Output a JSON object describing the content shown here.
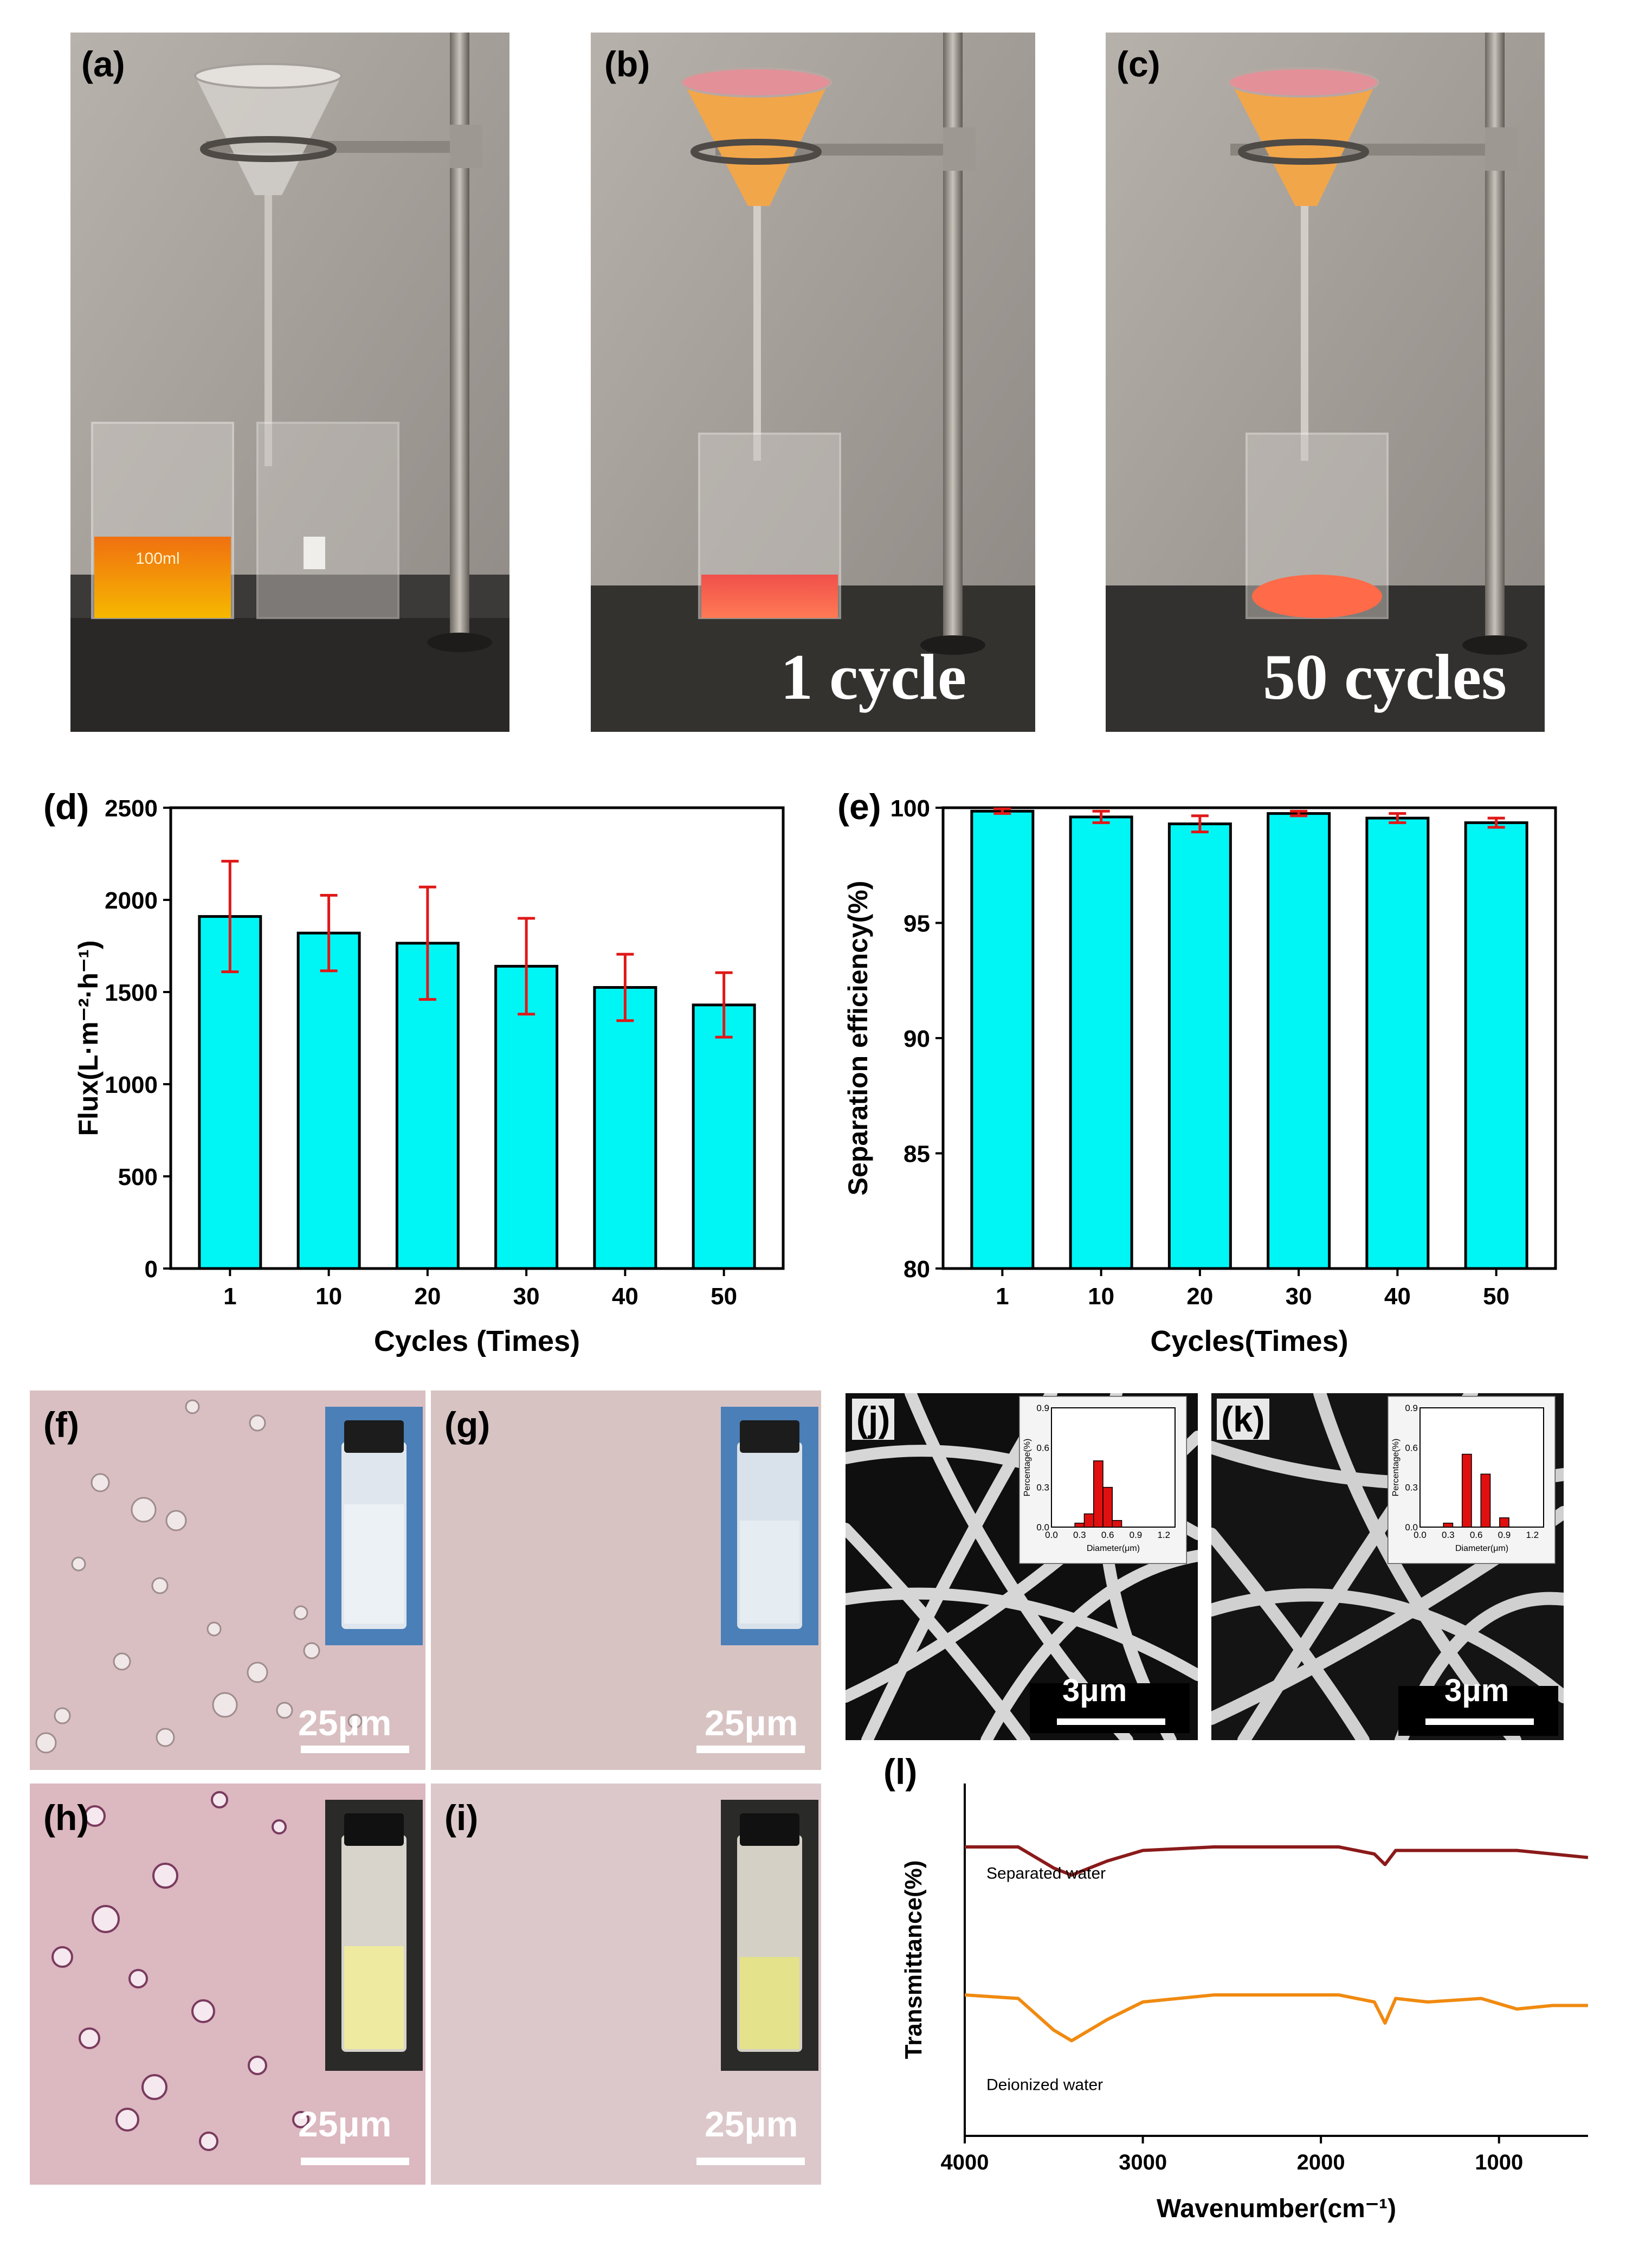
{
  "panels": {
    "a": {
      "label": "(a)"
    },
    "b": {
      "label": "(b)",
      "caption": "1 cycle"
    },
    "c": {
      "label": "(c)",
      "caption": "50 cycles"
    },
    "d": {
      "label": "(d)"
    },
    "e": {
      "label": "(e)"
    },
    "f": {
      "label": "(f)",
      "scale": "25μm"
    },
    "g": {
      "label": "(g)",
      "scale": "25μm"
    },
    "h": {
      "label": "(h)",
      "scale": "25μm"
    },
    "i": {
      "label": "(i)",
      "scale": "25μm"
    },
    "j": {
      "label": "(j)",
      "scale": "3μm"
    },
    "k": {
      "label": "(k)",
      "scale": "3μm"
    },
    "l": {
      "label": "(l)"
    }
  },
  "beaker_text": "100ml",
  "colors": {
    "bar": "#00f5f5",
    "error": "#e01818",
    "separated": "#8b1a1a",
    "deionized": "#f08a10",
    "hist": "#e01010"
  },
  "chart_data": [
    {
      "id": "d",
      "type": "bar",
      "categories": [
        "1",
        "10",
        "20",
        "30",
        "40",
        "50"
      ],
      "values": [
        1910,
        1820,
        1765,
        1640,
        1525,
        1430
      ],
      "errors": [
        300,
        205,
        305,
        260,
        180,
        175
      ],
      "xlabel": "Cycles (Times)",
      "ylabel": "Flux(L·m⁻²·h⁻¹)",
      "ylim": [
        0,
        2500
      ],
      "yticks": [
        "0",
        "500",
        "1000",
        "1500",
        "2000",
        "2500"
      ]
    },
    {
      "id": "e",
      "type": "bar",
      "categories": [
        "1",
        "10",
        "20",
        "30",
        "40",
        "50"
      ],
      "values": [
        99.85,
        99.6,
        99.3,
        99.75,
        99.55,
        99.35
      ],
      "errors": [
        0.1,
        0.25,
        0.35,
        0.1,
        0.2,
        0.2
      ],
      "xlabel": "Cycles(Times)",
      "ylabel": "Separation efficiency(%)",
      "ylim": [
        80,
        100
      ],
      "yticks": [
        "80",
        "85",
        "90",
        "95",
        "100"
      ]
    },
    {
      "id": "j_inset",
      "type": "bar",
      "categories": [
        "0.3",
        "0.4",
        "0.5",
        "0.6",
        "0.7"
      ],
      "values": [
        0.03,
        0.1,
        0.5,
        0.3,
        0.05
      ],
      "xlabel": "Diameter(μm)",
      "ylabel": "Percentage(%)",
      "xticks": [
        "0.0",
        "0.3",
        "0.6",
        "0.9",
        "1.2"
      ],
      "yticks": [
        "0.0",
        "0.3",
        "0.6",
        "0.9"
      ],
      "ylim": [
        0,
        0.9
      ]
    },
    {
      "id": "k_inset",
      "type": "bar",
      "categories": [
        "0.3",
        "0.5",
        "0.7",
        "0.9"
      ],
      "values": [
        0.03,
        0.55,
        0.4,
        0.07
      ],
      "xlabel": "Diameter(μm)",
      "ylabel": "Percentage(%)",
      "xticks": [
        "0.0",
        "0.3",
        "0.6",
        "0.9",
        "1.2"
      ],
      "yticks": [
        "0.0",
        "0.3",
        "0.6",
        "0.9"
      ],
      "ylim": [
        0,
        0.9
      ]
    },
    {
      "id": "l",
      "type": "line",
      "xlabel": "Wavenumber(cm⁻¹)",
      "ylabel": "Transmittance(%)",
      "xlim": [
        4000,
        500
      ],
      "xticks": [
        "4000",
        "3000",
        "2000",
        "1000"
      ],
      "series": [
        {
          "name": "Separated water",
          "x": [
            4000,
            3700,
            3500,
            3400,
            3200,
            3000,
            2600,
            2200,
            1900,
            1700,
            1640,
            1580,
            1400,
            1100,
            900,
            700,
            500
          ],
          "y": [
            0.82,
            0.82,
            0.76,
            0.74,
            0.78,
            0.81,
            0.82,
            0.82,
            0.82,
            0.8,
            0.77,
            0.81,
            0.81,
            0.81,
            0.81,
            0.8,
            0.79
          ]
        },
        {
          "name": "Deionized water",
          "x": [
            4000,
            3700,
            3500,
            3400,
            3200,
            3000,
            2600,
            2200,
            1900,
            1700,
            1640,
            1580,
            1400,
            1100,
            900,
            700,
            500
          ],
          "y": [
            0.4,
            0.39,
            0.3,
            0.27,
            0.33,
            0.38,
            0.4,
            0.4,
            0.4,
            0.38,
            0.32,
            0.39,
            0.38,
            0.39,
            0.36,
            0.37,
            0.37
          ]
        }
      ]
    }
  ]
}
